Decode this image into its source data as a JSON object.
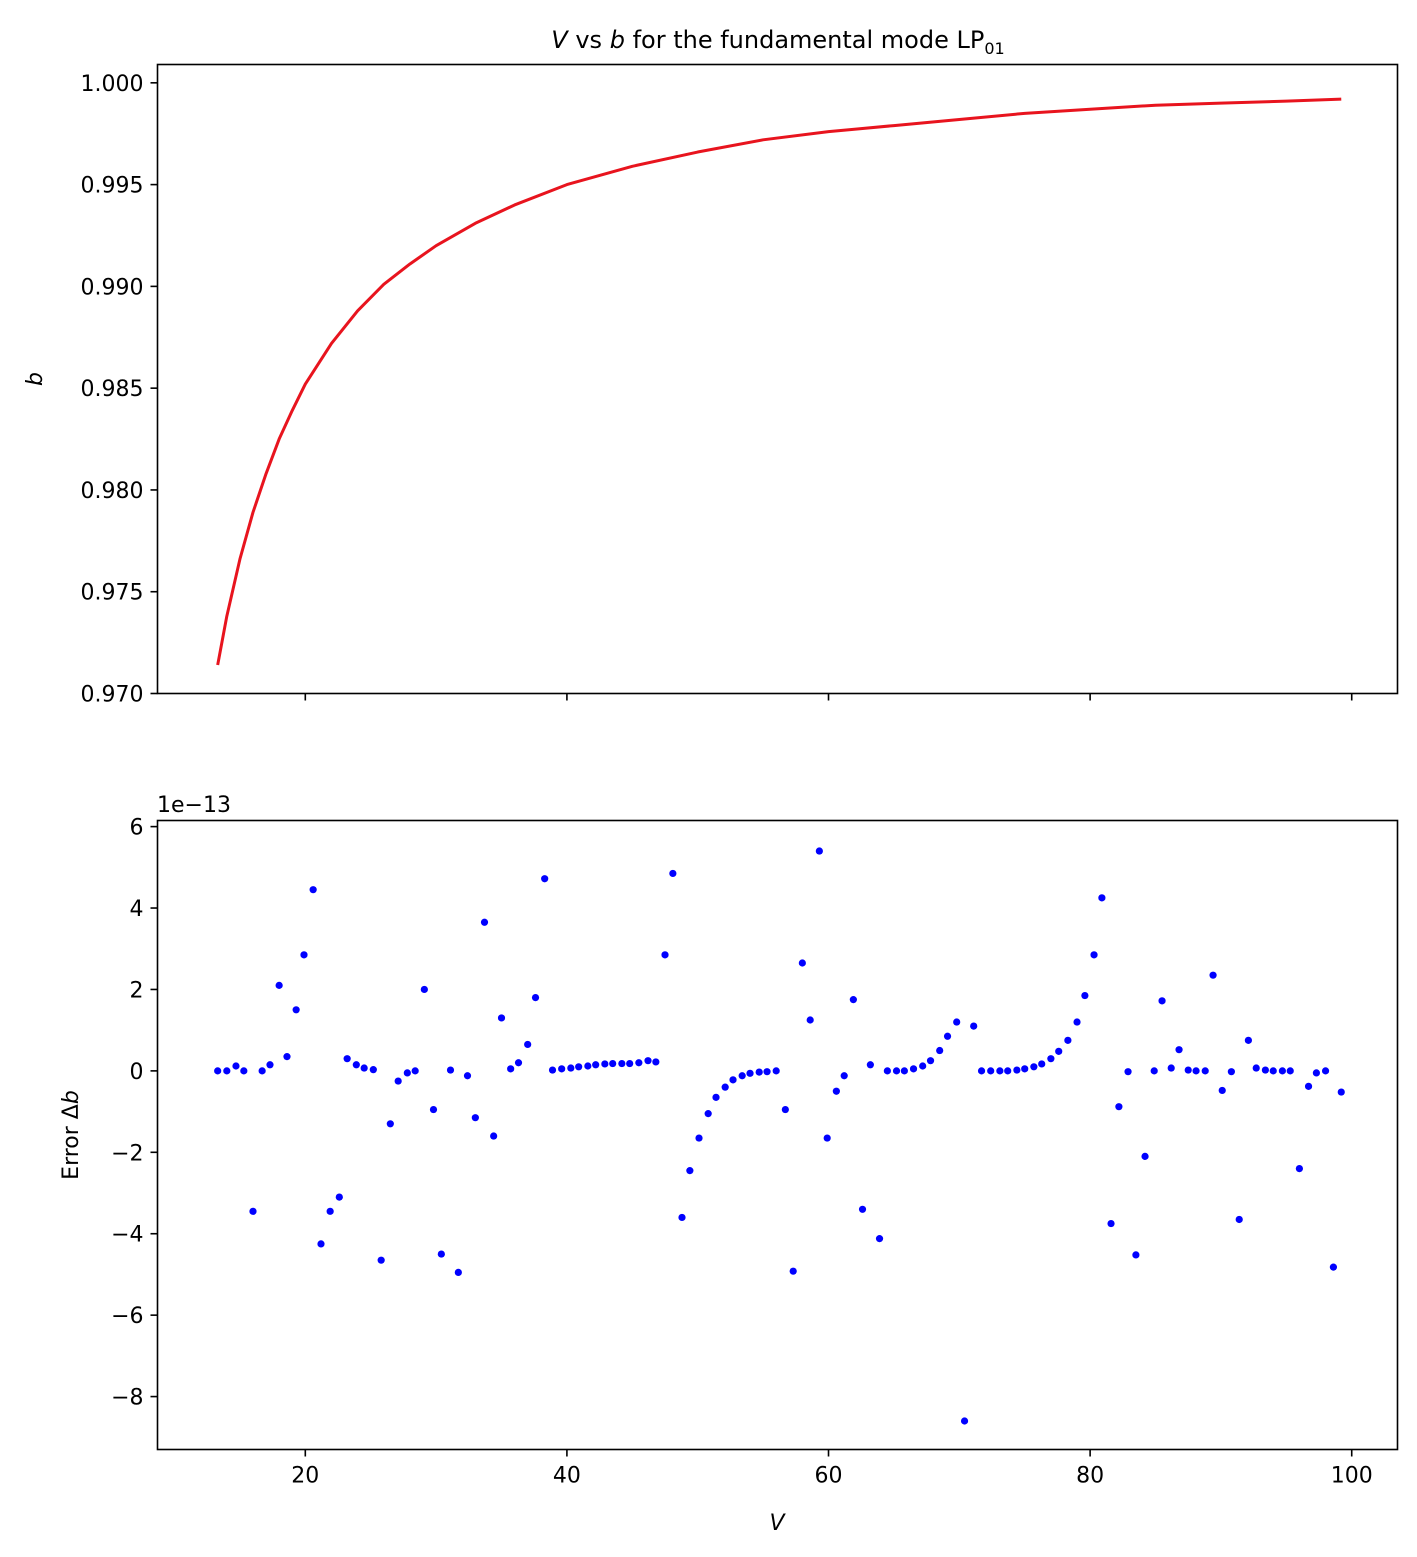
{
  "chart_data": [
    {
      "type": "line",
      "title": "V vs b for the fundamental mode LP01",
      "title_parts": {
        "italic_v": "V",
        "vs": "vs",
        "italic_b": "b",
        "rest": "for the fundamental mode LP",
        "subscript": "01"
      },
      "xlabel": "",
      "ylabel": "b",
      "xlim": [
        8.7,
        103.5
      ],
      "ylim": [
        0.97,
        1.0009
      ],
      "x_ticks": [
        20,
        40,
        60,
        80,
        100
      ],
      "x_tick_labels_shown": false,
      "y_ticks": [
        0.97,
        0.975,
        0.98,
        0.985,
        0.99,
        0.995,
        1.0
      ],
      "y_tick_labels": [
        "0.970",
        "0.975",
        "0.980",
        "0.985",
        "0.990",
        "0.995",
        "1.000"
      ],
      "grid": false,
      "series": [
        {
          "color": "#e8141e",
          "x": [
            13.3,
            14,
            15,
            16,
            17,
            18,
            19,
            20,
            22,
            24,
            26,
            28,
            30,
            33,
            36,
            40,
            45,
            50,
            55,
            60,
            65,
            70,
            75,
            80,
            85,
            90,
            95,
            99.2
          ],
          "y": [
            0.9714,
            0.9738,
            0.9766,
            0.9789,
            0.9808,
            0.9825,
            0.9839,
            0.9852,
            0.9872,
            0.9888,
            0.9901,
            0.9911,
            0.992,
            0.9931,
            0.994,
            0.995,
            0.9959,
            0.9966,
            0.9972,
            0.9976,
            0.9979,
            0.9982,
            0.9985,
            0.9987,
            0.9989,
            0.999,
            0.9991,
            0.9992
          ]
        }
      ]
    },
    {
      "type": "scatter",
      "title": "",
      "xlabel": "V",
      "ylabel": "Error Δb",
      "ylabel_parts": {
        "plain": "Error Δ",
        "italic": "b"
      },
      "offset_text": "1e−13",
      "xlim": [
        8.7,
        103.5
      ],
      "ylim": [
        -9.3,
        6.15
      ],
      "x_ticks": [
        20,
        40,
        60,
        80,
        100
      ],
      "x_tick_labels": [
        "20",
        "40",
        "60",
        "80",
        "100"
      ],
      "y_ticks": [
        -8,
        -6,
        -4,
        -2,
        0,
        2,
        4,
        6
      ],
      "y_tick_labels": [
        "−8",
        "−6",
        "−4",
        "−2",
        "0",
        "2",
        "4",
        "6"
      ],
      "grid": false,
      "series": [
        {
          "color": "#0000ff",
          "x": [
            13.3,
            14.0,
            14.7,
            15.3,
            16.0,
            16.7,
            17.3,
            18.0,
            18.6,
            19.3,
            19.9,
            20.6,
            21.2,
            21.9,
            22.6,
            23.2,
            23.9,
            24.5,
            25.2,
            25.8,
            26.5,
            27.1,
            27.8,
            28.4,
            29.1,
            29.8,
            30.4,
            31.1,
            31.7,
            32.4,
            33.0,
            33.7,
            34.4,
            35.0,
            35.7,
            36.3,
            37.0,
            37.6,
            38.3,
            38.9,
            39.6,
            40.3,
            40.9,
            41.6,
            42.2,
            42.9,
            43.5,
            44.2,
            44.8,
            45.5,
            46.2,
            46.8,
            47.5,
            48.1,
            48.8,
            49.4,
            50.1,
            50.8,
            51.4,
            52.1,
            52.7,
            53.4,
            54.0,
            54.7,
            55.3,
            56.0,
            56.7,
            57.3,
            58.0,
            58.6,
            59.3,
            59.9,
            60.6,
            61.2,
            61.9,
            62.6,
            63.2,
            63.9,
            64.5,
            65.2,
            65.8,
            66.5,
            67.2,
            67.8,
            68.5,
            69.1,
            69.8,
            70.4,
            71.1,
            71.7,
            72.4,
            73.1,
            73.7,
            74.4,
            75.0,
            75.7,
            76.3,
            77.0,
            77.6,
            78.3,
            79.0,
            79.6,
            80.3,
            80.9,
            81.6,
            82.2,
            82.9,
            83.5,
            84.2,
            84.9,
            85.5,
            86.2,
            86.8,
            87.5,
            88.1,
            88.8,
            89.4,
            90.1,
            90.8,
            91.4,
            92.1,
            92.7,
            93.4,
            94.0,
            94.7,
            95.3,
            96.0,
            96.7,
            97.3,
            98.0,
            98.6,
            99.2
          ],
          "y": [
            0.0,
            0.0,
            0.12,
            0.0,
            -3.45,
            0.0,
            0.15,
            2.1,
            0.35,
            1.5,
            2.85,
            4.45,
            -4.25,
            -3.45,
            -3.1,
            0.3,
            0.15,
            0.07,
            0.03,
            -4.65,
            -1.3,
            -0.25,
            -0.05,
            0.0,
            2.0,
            -0.95,
            -4.5,
            0.02,
            -4.95,
            -0.12,
            -1.15,
            3.65,
            -1.6,
            1.3,
            0.05,
            0.2,
            0.65,
            1.8,
            4.72,
            0.02,
            0.05,
            0.07,
            0.1,
            0.12,
            0.15,
            0.17,
            0.18,
            0.18,
            0.18,
            0.2,
            0.25,
            0.22,
            2.85,
            4.85,
            -3.6,
            -2.45,
            -1.65,
            -1.05,
            -0.65,
            -0.4,
            -0.22,
            -0.12,
            -0.06,
            -0.03,
            -0.02,
            0.0,
            -0.95,
            -4.92,
            2.65,
            1.25,
            5.4,
            -1.65,
            -0.5,
            -0.12,
            1.75,
            -3.4,
            0.15,
            -4.12,
            0.0,
            0.0,
            0.0,
            0.05,
            0.12,
            0.25,
            0.5,
            0.85,
            1.2,
            -8.6,
            1.1,
            0.0,
            0.0,
            0.0,
            0.0,
            0.02,
            0.05,
            0.1,
            0.17,
            0.3,
            0.48,
            0.75,
            1.2,
            1.85,
            2.85,
            4.25,
            -3.75,
            -0.88,
            -0.02,
            -4.52,
            -2.1,
            0.0,
            1.72,
            0.07,
            0.52,
            0.02,
            0.0,
            0.0,
            2.35,
            -0.48,
            -0.02,
            -3.65,
            0.75,
            0.07,
            0.02,
            0.0,
            0.0,
            0.0,
            -2.4,
            -0.38,
            -0.05,
            0.0,
            -4.82,
            -0.52
          ]
        }
      ]
    }
  ]
}
